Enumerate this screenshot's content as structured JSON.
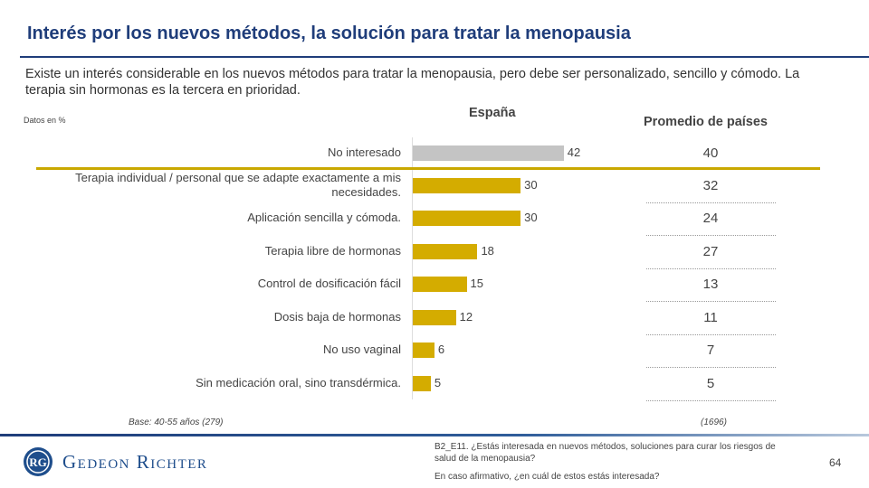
{
  "title": "Interés por los nuevos métodos, la solución para tratar la menopausia",
  "subtitle": "Existe un interés considerable en los nuevos métodos para tratar la menopausia, pero debe ser personalizado, sencillo y cómodo. La terapia sin hormonas es la tercera en prioridad.",
  "datos_label": "Datos en %",
  "chart_data": {
    "type": "bar",
    "orientation": "horizontal",
    "categories": [
      "No interesado",
      "Terapia individual / personal que se adapte exactamente a mis necesidades.",
      "Aplicación sencilla y cómoda.",
      "Terapia libre de hormonas",
      "Control de dosificación fácil",
      "Dosis baja de hormonas",
      "No uso vaginal",
      "Sin medicación oral, sino transdérmica."
    ],
    "series": [
      {
        "name": "España",
        "values": [
          42,
          30,
          30,
          18,
          15,
          12,
          6,
          5
        ],
        "colors": [
          "#c4c4c4",
          "#d4ac00",
          "#d4ac00",
          "#d4ac00",
          "#d4ac00",
          "#d4ac00",
          "#d4ac00",
          "#d4ac00"
        ]
      },
      {
        "name": "Promedio de países",
        "values": [
          40,
          32,
          24,
          27,
          13,
          11,
          7,
          5
        ]
      }
    ]
  },
  "base": "Base: 40-55 años (279)",
  "base_avg": "(1696)",
  "logo": "Gedeon Richter",
  "question1": "B2_E11. ¿Estás interesada en nuevos métodos, soluciones para curar  los riesgos de salud de la menopausia?",
  "question2": "En caso afirmativo, ¿en cuál de estos estás interesada?",
  "page_number": "64"
}
